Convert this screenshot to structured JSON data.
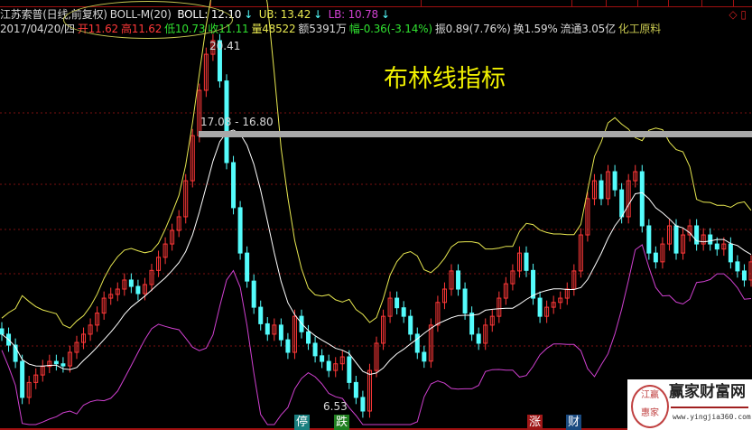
{
  "header": {
    "stock": "江苏索普(日线,前复权)",
    "indicator": "BOLL-M(20)",
    "boll": "BOLL: 12.10",
    "ub": "UB: 13.42",
    "lb": "LB: 10.78",
    "arrow": "↓",
    "date": "2017/04/20/四",
    "open": "开11.62",
    "high": "高11.62",
    "low": "低10.73",
    "close": "收11.11",
    "volume": "量48522",
    "amount": "额5391万",
    "change": "幅-0.36(-3.14%)",
    "amplitude": "振0.89(7.76%)",
    "turnover": "换1.59%",
    "float": "流通3.05亿",
    "sector": "化工原料",
    "corner_icons": [
      "diamond-icon",
      "window-icon"
    ]
  },
  "annotations": {
    "title": "布林线指标",
    "high_label": "20.41",
    "low_label": "6.53",
    "resistance_label": "17.08 - 16.80"
  },
  "markers": [
    {
      "text": "停",
      "color": "#1a8080"
    },
    {
      "text": "跌",
      "color": "#208020"
    },
    {
      "text": "涨",
      "color": "#a01818"
    },
    {
      "text": "财",
      "color": "#1a4a80"
    }
  ],
  "logo": {
    "name": "赢家财富网",
    "seal": "江赢惠家",
    "url": "www.yingjia360.com"
  },
  "colors": {
    "up": "#ff3838",
    "down": "#54fcfc",
    "upper": "#e8e850",
    "mid": "#ffffff",
    "lower": "#d040d0",
    "grid": "#7a1010"
  },
  "chart_data": {
    "type": "candlestick",
    "indicator": "BOLL",
    "ylim": [
      6.53,
      20.41
    ],
    "grid": true,
    "closes": [
      9.41,
      9.0,
      8.39,
      7.04,
      7.6,
      7.88,
      8.2,
      8.39,
      8.3,
      8.22,
      8.73,
      9.1,
      9.41,
      9.75,
      10.2,
      10.76,
      10.9,
      11.1,
      11.44,
      11.2,
      10.93,
      11.27,
      11.8,
      12.29,
      12.79,
      13.3,
      13.81,
      15.16,
      16.85,
      18.55,
      19.9,
      20.41,
      18.9,
      15.84,
      14.15,
      12.45,
      11.4,
      10.42,
      9.8,
      9.41,
      9.75,
      9.2,
      8.73,
      10.08,
      9.5,
      9.07,
      8.6,
      8.39,
      8.05,
      8.3,
      8.56,
      7.6,
      7.04,
      6.53,
      8.05,
      9.07,
      10.08,
      10.76,
      10.4,
      10.08,
      9.41,
      8.73,
      8.4,
      9.75,
      10.6,
      11.1,
      11.78,
      11.1,
      10.2,
      9.41,
      9.07,
      9.75,
      10.08,
      10.76,
      11.3,
      11.78,
      12.45,
      11.8,
      10.76,
      10.08,
      10.42,
      10.6,
      10.76,
      11.1,
      11.78,
      13.13,
      14.49,
      15.16,
      14.49,
      15.5,
      14.82,
      13.81,
      15.16,
      15.5,
      13.47,
      12.45,
      12.12,
      12.79,
      13.47,
      12.45,
      13.13,
      13.47,
      12.79,
      13.13,
      12.79,
      12.6,
      12.79,
      12.12,
      11.78,
      11.44,
      12.12
    ]
  }
}
